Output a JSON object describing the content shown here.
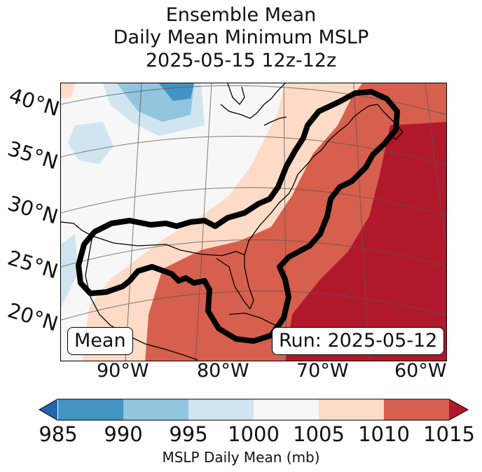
{
  "title": {
    "line1": "Ensemble Mean",
    "line2": "Daily Mean Minimum MSLP",
    "line3": "2025-05-15 12z-12z"
  },
  "map": {
    "lat_labels": [
      "40°N",
      "35°N",
      "30°N",
      "25°N",
      "20°N"
    ],
    "lon_labels": [
      "90°W",
      "80°W",
      "70°W",
      "60°W"
    ],
    "mean_box": "Mean",
    "run_box": "Run: 2025-05-12",
    "variable": "minimum mean sea level pressure (ensemble mean)"
  },
  "colorbar": {
    "label": "MSLP Daily Mean (mb)",
    "ticks": [
      "985",
      "990",
      "995",
      "1000",
      "1005",
      "1010",
      "1015"
    ],
    "bins": [
      {
        "range": "<985",
        "color": "#2166ac"
      },
      {
        "range": "985-990",
        "color": "#4393c3"
      },
      {
        "range": "990-995",
        "color": "#92c5de"
      },
      {
        "range": "995-1000",
        "color": "#d1e5f0"
      },
      {
        "range": "1000-1005",
        "color": "#f7f7f7"
      },
      {
        "range": "1005-1010",
        "color": "#fddbc7"
      },
      {
        "range": "1010-1015",
        "color": "#d6604d"
      },
      {
        "range": ">1015",
        "color": "#b2182b"
      }
    ]
  },
  "colors": {
    "contour": "#000000",
    "coast": "#000000",
    "grid": "#555555"
  }
}
